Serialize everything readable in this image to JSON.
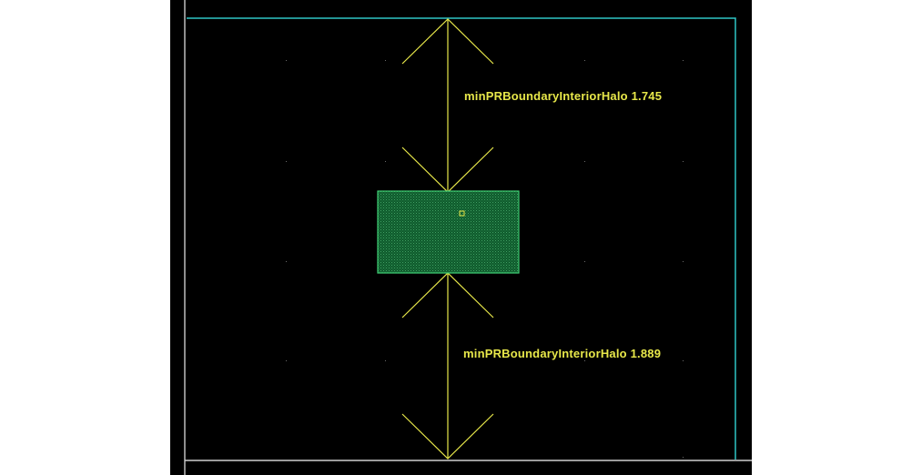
{
  "canvas": {
    "background": "#000000",
    "annotation_color": "#e8e84a",
    "pr_boundary_color": "#2fc6c6",
    "cell_fill": "#0f5a2c",
    "cell_border": "#3fcf74"
  },
  "annotations": {
    "top_rule": "minPRBoundaryInteriorHalo 1.745",
    "bottom_rule": "minPRBoundaryInteriorHalo 1.889"
  }
}
